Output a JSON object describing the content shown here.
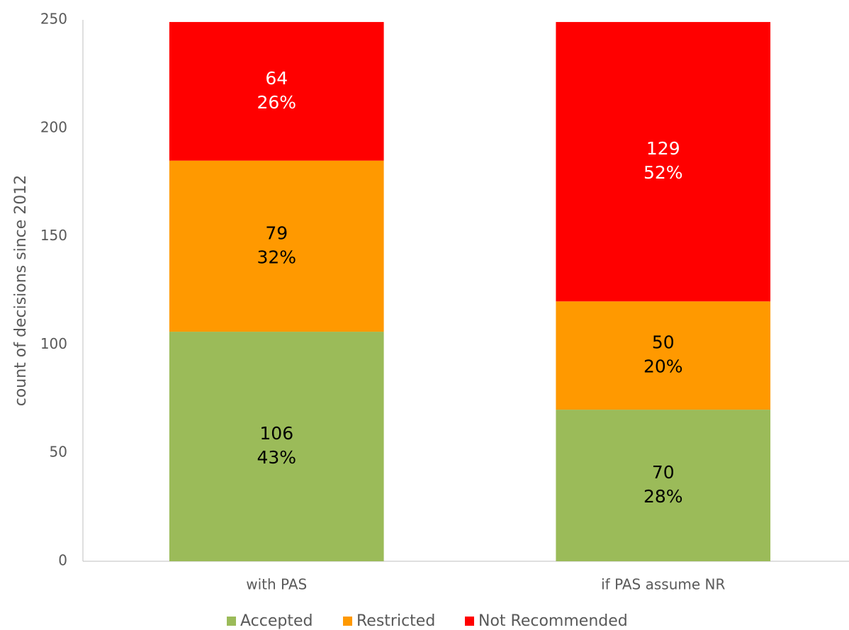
{
  "chart_data": {
    "type": "stacked_bar",
    "y_label": "count of decisions since 2012",
    "categories": [
      "with PAS",
      "if PAS assume NR"
    ],
    "series": [
      {
        "name": "Accepted",
        "color": "#9bbb59",
        "label_color": "#000000",
        "values": [
          106,
          70
        ],
        "percent_labels": [
          "43%",
          "28%"
        ]
      },
      {
        "name": "Restricted",
        "color": "#ff9900",
        "label_color": "#000000",
        "values": [
          79,
          50
        ],
        "percent_labels": [
          "32%",
          "20%"
        ]
      },
      {
        "name": "Not Recommended",
        "color": "#ff0000",
        "label_color": "#ffffff",
        "values": [
          64,
          129
        ],
        "percent_labels": [
          "26%",
          "52%"
        ]
      }
    ],
    "ylim": [
      0,
      250
    ],
    "yticks": [
      0,
      50,
      100,
      150,
      200,
      250
    ],
    "grid": false,
    "legend": "bottom"
  }
}
